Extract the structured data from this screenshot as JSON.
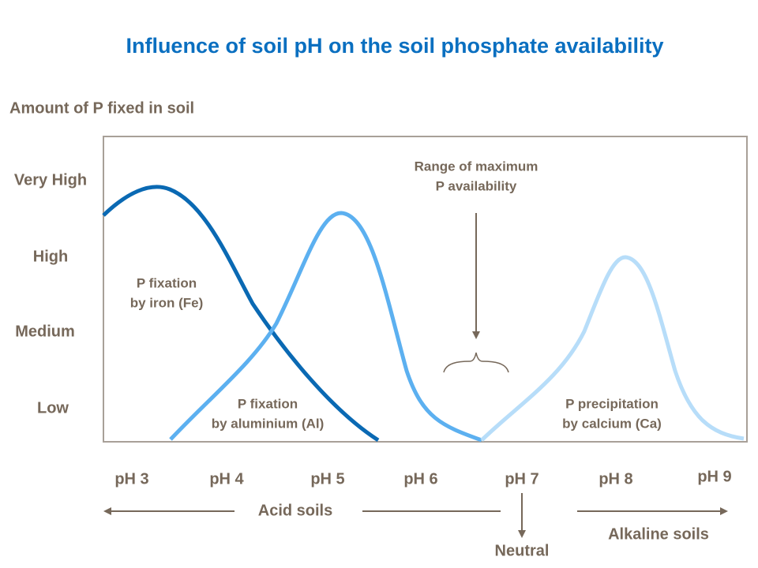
{
  "title": "Influence of soil pH on the soil phosphate availability",
  "y_axis": {
    "title": "Amount of P fixed in soil",
    "labels": [
      "Very High",
      "High",
      "Medium",
      "Low"
    ]
  },
  "x_axis": {
    "labels": [
      "pH 3",
      "pH 4",
      "pH 5",
      "pH 6",
      "pH 7",
      "pH 8",
      "pH 9"
    ]
  },
  "annotations": {
    "iron": [
      "P fixation",
      "by iron (Fe)"
    ],
    "aluminium": [
      "P fixation",
      "by aluminium (Al)"
    ],
    "calcium": [
      "P precipitation",
      "by calcium (Ca)"
    ],
    "range": [
      "Range of maximum",
      "P availability"
    ]
  },
  "soil_classes": {
    "acid": "Acid soils",
    "neutral": "Neutral",
    "alkaline": "Alkaline soils"
  }
}
